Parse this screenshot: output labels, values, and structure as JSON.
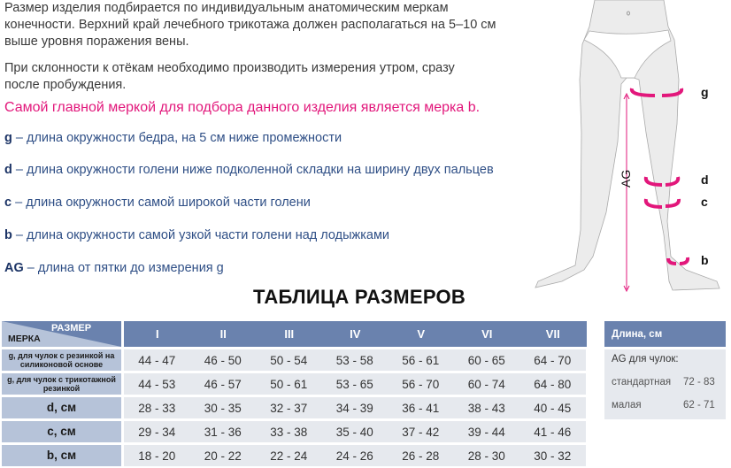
{
  "intro": {
    "p1_line1": "Размер изделия подбирается по индивидуальным анатомическим меркам",
    "p1_line2": "конечности. Верхний край лечебного трикотажа должен располагаться на 5–10 см",
    "p1_line3": "выше уровня поражения вены.",
    "p2_line1": "При склонности к отёкам необходимо производить измерения утром, сразу",
    "p2_line2": "после пробуждения.",
    "highlight": "Самой главной меркой для подбора данного изделия является мерка b."
  },
  "measures": [
    {
      "key": "g",
      "text": " – длина окружности бедра, на 5 см ниже промежности"
    },
    {
      "key": "d",
      "text": " – длина окружности голени ниже подколенной складки на ширину двух пальцев"
    },
    {
      "key": "c",
      "text": " – длина окружности самой широкой части голени"
    },
    {
      "key": "b",
      "text": " – длина окружности самой узкой части голени над лодыжками"
    },
    {
      "key": "AG",
      "text": " – длина от пятки до измерения g"
    }
  ],
  "diagram": {
    "labels": [
      "g",
      "d",
      "c",
      "b",
      "AG"
    ]
  },
  "table": {
    "title": "ТАБЛИЦА РАЗМЕРОВ",
    "corner_size": "РАЗМЕР",
    "corner_measure": "МЕРКА",
    "sizes": [
      "I",
      "II",
      "III",
      "IV",
      "V",
      "VI",
      "VII"
    ],
    "rows": [
      {
        "label": "g, для чулок с  резинкой на силиконовой основе",
        "values": [
          "44 - 47",
          "46 - 50",
          "50 - 54",
          "53 - 58",
          "56 - 61",
          "60 - 65",
          "64 - 70"
        ]
      },
      {
        "label": "g, для чулок с трикотажной резинкой",
        "values": [
          "44 - 53",
          "46 - 57",
          "50 - 61",
          "53 - 65",
          "56 - 70",
          "60 - 74",
          "64 - 80"
        ]
      },
      {
        "label": "d, см",
        "values": [
          "28 - 33",
          "30 - 35",
          "32 - 37",
          "34 - 39",
          "36 - 41",
          "38 - 43",
          "40 - 45"
        ]
      },
      {
        "label": "c, см",
        "values": [
          "29 - 34",
          "31 - 36",
          "33 - 38",
          "35 - 40",
          "37 - 42",
          "39 - 44",
          "41 - 46"
        ]
      },
      {
        "label": "b, см",
        "values": [
          "18 - 20",
          "20 - 22",
          "22 - 24",
          "24 - 26",
          "26 - 28",
          "28 - 30",
          "30 - 32"
        ]
      }
    ]
  },
  "length": {
    "header": "Длина, см",
    "subtitle": "AG для чулок:",
    "items": [
      {
        "label": "стандартная",
        "value": "72 - 83"
      },
      {
        "label": "малая",
        "value": "62 - 71"
      }
    ]
  },
  "colors": {
    "accent": "#e2177b",
    "header": "#6a82ae",
    "label_bg": "#b6c3d9",
    "cell_bg": "#e6e9ee",
    "text_blue": "#2f4f86"
  }
}
